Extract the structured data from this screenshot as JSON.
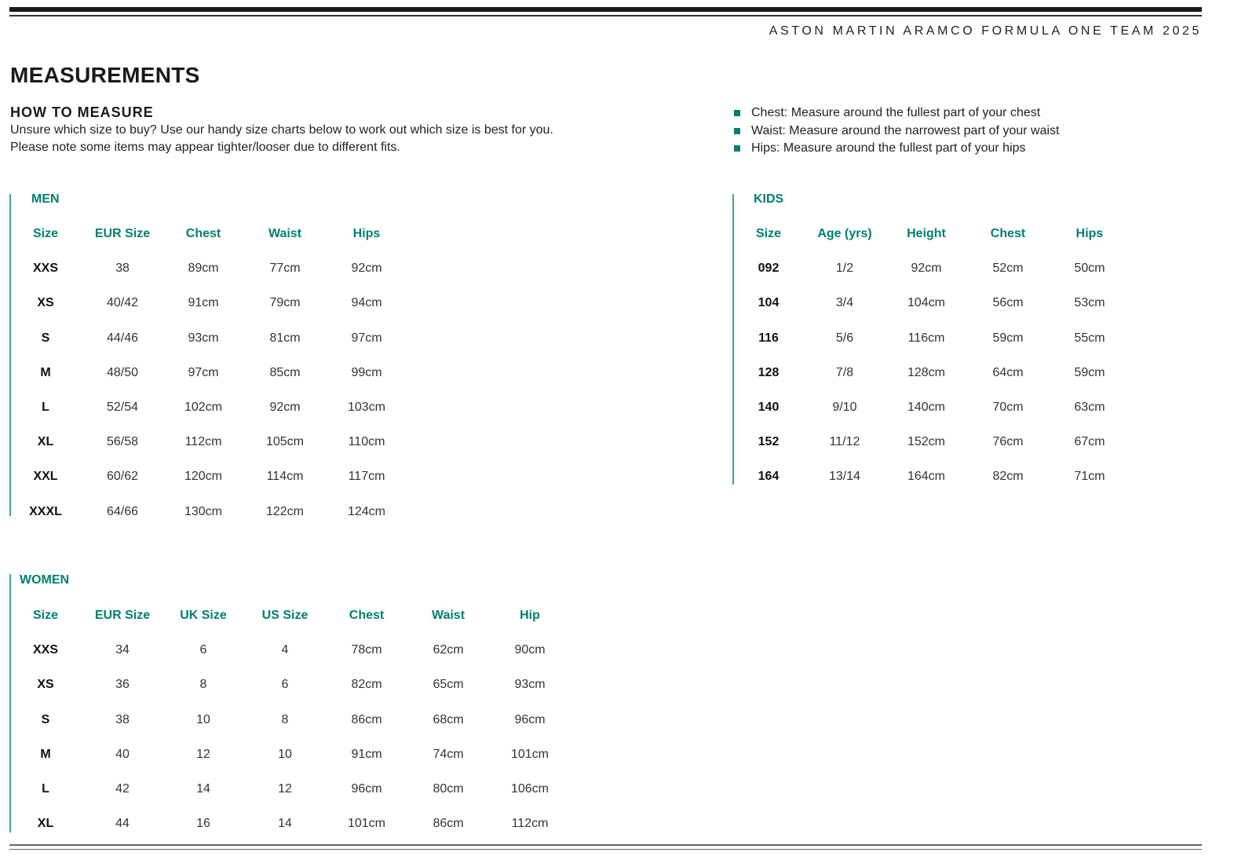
{
  "brand": "ASTON MARTIN ARAMCO FORMULA ONE TEAM 2025",
  "title": "MEASUREMENTS",
  "how_to": {
    "heading": "HOW TO MEASURE",
    "lines": [
      "Unsure which size to buy? Use our handy size charts below to work out which size is best for you.",
      "Please note some items may appear tighter/looser due to different fits."
    ],
    "bullets": [
      "Chest: Measure around the fullest part of your chest",
      "Waist: Measure around the narrowest part of your waist",
      "Hips: Measure around the fullest part of your hips"
    ]
  },
  "accent_color": "#00806e",
  "men": {
    "label": "MEN",
    "headers": [
      "Size",
      "EUR Size",
      "Chest",
      "Waist",
      "Hips"
    ],
    "rows": [
      [
        "XXS",
        "38",
        "89cm",
        "77cm",
        "92cm"
      ],
      [
        "XS",
        "40/42",
        "91cm",
        "79cm",
        "94cm"
      ],
      [
        "S",
        "44/46",
        "93cm",
        "81cm",
        "97cm"
      ],
      [
        "M",
        "48/50",
        "97cm",
        "85cm",
        "99cm"
      ],
      [
        "L",
        "52/54",
        "102cm",
        "92cm",
        "103cm"
      ],
      [
        "XL",
        "56/58",
        "112cm",
        "105cm",
        "110cm"
      ],
      [
        "XXL",
        "60/62",
        "120cm",
        "114cm",
        "117cm"
      ],
      [
        "XXXL",
        "64/66",
        "130cm",
        "122cm",
        "124cm"
      ]
    ]
  },
  "kids": {
    "label": "KIDS",
    "headers": [
      "Size",
      "Age (yrs)",
      "Height",
      "Chest",
      "Hips"
    ],
    "rows": [
      [
        "092",
        "1/2",
        "92cm",
        "52cm",
        "50cm"
      ],
      [
        "104",
        "3/4",
        "104cm",
        "56cm",
        "53cm"
      ],
      [
        "116",
        "5/6",
        "116cm",
        "59cm",
        "55cm"
      ],
      [
        "128",
        "7/8",
        "128cm",
        "64cm",
        "59cm"
      ],
      [
        "140",
        "9/10",
        "140cm",
        "70cm",
        "63cm"
      ],
      [
        "152",
        "11/12",
        "152cm",
        "76cm",
        "67cm"
      ],
      [
        "164",
        "13/14",
        "164cm",
        "82cm",
        "71cm"
      ]
    ]
  },
  "women": {
    "label": "WOMEN",
    "headers": [
      "Size",
      "EUR Size",
      "UK Size",
      "US Size",
      "Chest",
      "Waist",
      "Hip"
    ],
    "rows": [
      [
        "XXS",
        "34",
        "6",
        "4",
        "78cm",
        "62cm",
        "90cm"
      ],
      [
        "XS",
        "36",
        "8",
        "6",
        "82cm",
        "65cm",
        "93cm"
      ],
      [
        "S",
        "38",
        "10",
        "8",
        "86cm",
        "68cm",
        "96cm"
      ],
      [
        "M",
        "40",
        "12",
        "10",
        "91cm",
        "74cm",
        "101cm"
      ],
      [
        "L",
        "42",
        "14",
        "12",
        "96cm",
        "80cm",
        "106cm"
      ],
      [
        "XL",
        "44",
        "16",
        "14",
        "101cm",
        "86cm",
        "112cm"
      ]
    ]
  }
}
